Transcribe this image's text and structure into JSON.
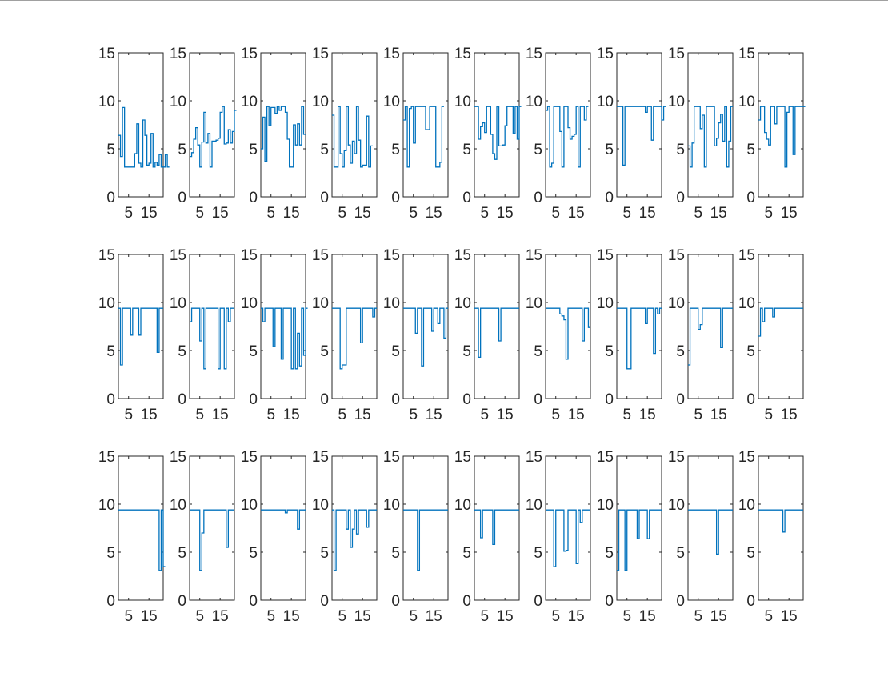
{
  "chart_data": {
    "type": "line",
    "layout": "3 rows x 10 columns of stairs subplots",
    "x_ticks": [
      5,
      15
    ],
    "y_ticks": [
      0,
      5,
      10,
      15
    ],
    "ylim": [
      0,
      15
    ],
    "xlim": [
      0,
      22
    ],
    "grid": false,
    "series_color": "#0072BD",
    "panels": [
      {
        "y": [
          6.4,
          4.2,
          9.3,
          3.1,
          3.1,
          3.1,
          3.1,
          3.1,
          4.5,
          7.6,
          3.5,
          3.1,
          8.0,
          6.4,
          3.3,
          3.5,
          6.6,
          3.1,
          3.6,
          3.3,
          4.4,
          3.1,
          3.1,
          4.4,
          3.1
        ]
      },
      {
        "y": [
          4.2,
          4.6,
          6.0,
          7.2,
          5.4,
          3.1,
          5.7,
          8.8,
          5.6,
          6.6,
          3.1,
          5.8,
          5.8,
          5.9,
          6.1,
          8.8,
          9.4,
          5.5,
          5.6,
          7.0,
          5.6,
          6.8,
          9.0
        ]
      },
      {
        "y": [
          5.0,
          8.3,
          3.7,
          9.4,
          7.4,
          9.3,
          9.3,
          8.7,
          9.4,
          9.0,
          9.4,
          9.4,
          8.8,
          6.0,
          3.1,
          3.1,
          7.5,
          5.4,
          7.6,
          5.4,
          9.4,
          6.5
        ]
      },
      {
        "y": [
          8.5,
          3.1,
          3.1,
          9.4,
          4.5,
          3.1,
          4.8,
          9.4,
          5.4,
          3.5,
          5.8,
          4.5,
          9.4,
          5.9,
          3.1,
          3.3,
          3.3,
          8.4,
          3.1,
          5.3
        ]
      },
      {
        "y": [
          8.0,
          9.4,
          3.1,
          9.2,
          9.4,
          5.6,
          9.4,
          9.4,
          9.4,
          9.4,
          9.4,
          7.0,
          7.0,
          9.4,
          9.4,
          9.4,
          3.1,
          3.1,
          3.6,
          9.4
        ]
      },
      {
        "y": [
          9.4,
          9.4,
          6.0,
          7.3,
          7.7,
          6.7,
          9.4,
          9.4,
          6.5,
          4.5,
          3.9,
          9.4,
          5.3,
          5.3,
          5.4,
          7.4,
          9.4,
          9.4,
          9.4,
          6.6,
          9.4,
          6.0,
          9.4
        ]
      },
      {
        "y": [
          9.0,
          9.4,
          3.1,
          3.5,
          9.4,
          9.4,
          9.4,
          6.8,
          3.1,
          9.4,
          9.4,
          7.2,
          6.0,
          6.3,
          6.5,
          9.4,
          3.1,
          9.4,
          9.4,
          8.0,
          9.4
        ]
      },
      {
        "y": [
          9.4,
          9.4,
          9.4,
          3.3,
          9.4,
          9.4,
          9.4,
          9.4,
          9.4,
          9.4,
          9.4,
          9.4,
          9.4,
          9.4,
          8.8,
          9.4,
          9.4,
          5.9,
          9.4,
          9.4,
          9.4,
          9.4,
          8.0,
          9.4
        ]
      },
      {
        "y": [
          5.3,
          3.1,
          5.6,
          9.4,
          9.4,
          9.4,
          7.1,
          8.5,
          3.1,
          9.4,
          9.4,
          9.4,
          9.4,
          5.3,
          6.1,
          7.7,
          8.6,
          5.8,
          9.4,
          3.1,
          5.8,
          9.4
        ]
      },
      {
        "y": [
          8.0,
          9.4,
          9.4,
          6.7,
          6.0,
          5.4,
          9.4,
          9.4,
          7.6,
          9.4,
          9.4,
          9.4,
          9.4,
          3.1,
          8.8,
          9.4,
          9.4,
          4.4,
          9.4,
          9.4,
          9.4,
          9.4,
          9.4
        ]
      },
      {
        "y": [
          9.4,
          3.5,
          9.4,
          9.4,
          9.4,
          9.4,
          6.6,
          9.4,
          9.4,
          9.4,
          6.6,
          9.4,
          9.4,
          9.4,
          9.4,
          9.4,
          9.4,
          9.4,
          9.4,
          4.8,
          9.4,
          9.4
        ]
      },
      {
        "y": [
          8.0,
          9.4,
          9.4,
          9.4,
          9.4,
          6.0,
          9.4,
          3.1,
          9.4,
          9.4,
          9.4,
          9.4,
          9.4,
          9.4,
          3.1,
          9.4,
          9.4,
          3.1,
          9.4,
          8.0,
          9.4,
          9.4
        ]
      },
      {
        "y": [
          9.4,
          8.0,
          9.4,
          9.4,
          9.4,
          9.4,
          5.4,
          9.4,
          9.4,
          9.4,
          4.1,
          9.4,
          9.4,
          9.4,
          9.4,
          3.1,
          9.4,
          3.1,
          6.8,
          3.4,
          9.4,
          4.5,
          9.4
        ]
      },
      {
        "y": [
          9.4,
          9.4,
          9.4,
          9.4,
          3.1,
          3.5,
          3.5,
          9.4,
          9.4,
          9.4,
          9.4,
          9.4,
          9.4,
          9.4,
          5.8,
          9.4,
          9.4,
          9.4,
          9.4,
          9.4,
          8.5,
          9.4
        ]
      },
      {
        "y": [
          9.4,
          9.4,
          9.4,
          9.4,
          9.4,
          9.4,
          6.8,
          9.4,
          9.4,
          3.4,
          9.4,
          9.4,
          9.4,
          9.4,
          7.0,
          9.4,
          9.4,
          7.8,
          9.4,
          9.4,
          6.3,
          9.4
        ]
      },
      {
        "y": [
          9.4,
          9.4,
          4.3,
          9.4,
          9.4,
          9.4,
          9.4,
          9.4,
          9.4,
          9.4,
          9.4,
          9.4,
          6.0,
          9.4,
          9.4,
          9.4,
          9.4,
          9.4,
          9.4,
          9.4,
          9.4,
          9.4
        ]
      },
      {
        "y": [
          9.4,
          9.4,
          9.4,
          9.4,
          9.4,
          9.4,
          9.4,
          8.8,
          8.6,
          8.2,
          4.1,
          9.4,
          9.4,
          9.4,
          9.4,
          9.4,
          9.4,
          9.4,
          6.0,
          9.4,
          9.4,
          7.4
        ]
      },
      {
        "y": [
          9.4,
          9.4,
          9.4,
          9.4,
          9.4,
          3.1,
          3.1,
          9.4,
          9.4,
          9.4,
          9.4,
          9.4,
          9.4,
          9.4,
          7.8,
          9.4,
          9.4,
          9.4,
          4.7,
          9.4,
          8.8,
          9.4
        ]
      },
      {
        "y": [
          3.5,
          9.4,
          9.4,
          9.4,
          9.4,
          7.2,
          7.7,
          9.4,
          9.4,
          9.4,
          9.4,
          9.4,
          9.4,
          9.4,
          9.4,
          9.4,
          5.3,
          9.4,
          9.4,
          9.4,
          9.4,
          9.4
        ]
      },
      {
        "y": [
          6.5,
          9.4,
          8.0,
          9.4,
          9.4,
          9.4,
          9.4,
          8.5,
          9.4,
          9.4,
          9.4,
          9.4,
          9.4,
          9.4,
          9.4,
          9.4,
          9.4,
          9.4,
          9.4,
          9.4,
          9.4,
          9.4
        ]
      },
      {
        "y": [
          9.4,
          9.4,
          9.4,
          9.4,
          9.4,
          9.4,
          9.4,
          9.4,
          9.4,
          9.4,
          9.4,
          9.4,
          9.4,
          9.4,
          9.4,
          9.4,
          9.4,
          9.4,
          9.4,
          9.4,
          3.1,
          9.4,
          3.5
        ]
      },
      {
        "y": [
          9.4,
          9.4,
          9.4,
          9.4,
          9.4,
          3.1,
          7.0,
          9.4,
          9.4,
          9.4,
          9.4,
          9.4,
          9.4,
          9.4,
          9.4,
          9.4,
          9.4,
          9.4,
          5.5,
          9.4,
          9.4,
          9.4
        ]
      },
      {
        "y": [
          9.4,
          9.4,
          9.4,
          9.4,
          9.4,
          9.4,
          9.4,
          9.4,
          9.4,
          9.4,
          9.4,
          9.4,
          9.1,
          9.4,
          9.4,
          9.4,
          9.4,
          9.4,
          7.4,
          9.4,
          9.4,
          9.4
        ]
      },
      {
        "y": [
          9.4,
          3.1,
          9.4,
          9.4,
          9.4,
          9.4,
          9.4,
          7.4,
          9.4,
          5.5,
          7.4,
          9.4,
          6.9,
          9.4,
          9.4,
          9.4,
          9.4,
          7.6,
          9.4,
          9.4,
          9.4,
          9.4
        ]
      },
      {
        "y": [
          9.4,
          9.4,
          9.4,
          9.4,
          9.4,
          9.4,
          9.4,
          3.1,
          9.4,
          9.4,
          9.4,
          9.4,
          9.4,
          9.4,
          9.4,
          9.4,
          9.4,
          9.4,
          9.4,
          9.4,
          9.4,
          9.4
        ]
      },
      {
        "y": [
          9.4,
          9.4,
          9.4,
          6.5,
          9.4,
          9.4,
          9.4,
          9.4,
          9.4,
          5.8,
          9.4,
          9.4,
          9.4,
          9.4,
          9.4,
          9.4,
          9.4,
          9.4,
          9.4,
          9.4,
          9.4,
          9.4
        ]
      },
      {
        "y": [
          9.4,
          9.4,
          9.4,
          9.4,
          3.5,
          9.4,
          9.4,
          9.4,
          9.4,
          5.1,
          5.2,
          9.4,
          9.4,
          9.4,
          9.4,
          3.8,
          9.4,
          8.1,
          9.4,
          9.4,
          9.4,
          9.4
        ]
      },
      {
        "y": [
          3.1,
          9.4,
          9.4,
          9.4,
          3.1,
          9.4,
          9.4,
          9.4,
          9.4,
          9.4,
          6.4,
          9.4,
          9.4,
          9.4,
          9.4,
          6.4,
          9.4,
          9.4,
          9.4,
          9.4,
          9.4,
          9.4
        ]
      },
      {
        "y": [
          9.4,
          9.4,
          9.4,
          9.4,
          9.4,
          9.4,
          9.4,
          9.4,
          9.4,
          9.4,
          9.4,
          9.4,
          9.4,
          9.4,
          4.8,
          9.4,
          9.4,
          9.4,
          9.4,
          9.4,
          9.4,
          9.4
        ]
      },
      {
        "y": [
          9.4,
          9.4,
          9.4,
          9.4,
          9.4,
          9.4,
          9.4,
          9.4,
          9.4,
          9.4,
          9.4,
          9.4,
          7.1,
          9.4,
          9.4,
          9.4,
          9.4,
          9.4,
          9.4,
          9.4,
          9.4,
          9.4
        ]
      }
    ]
  }
}
